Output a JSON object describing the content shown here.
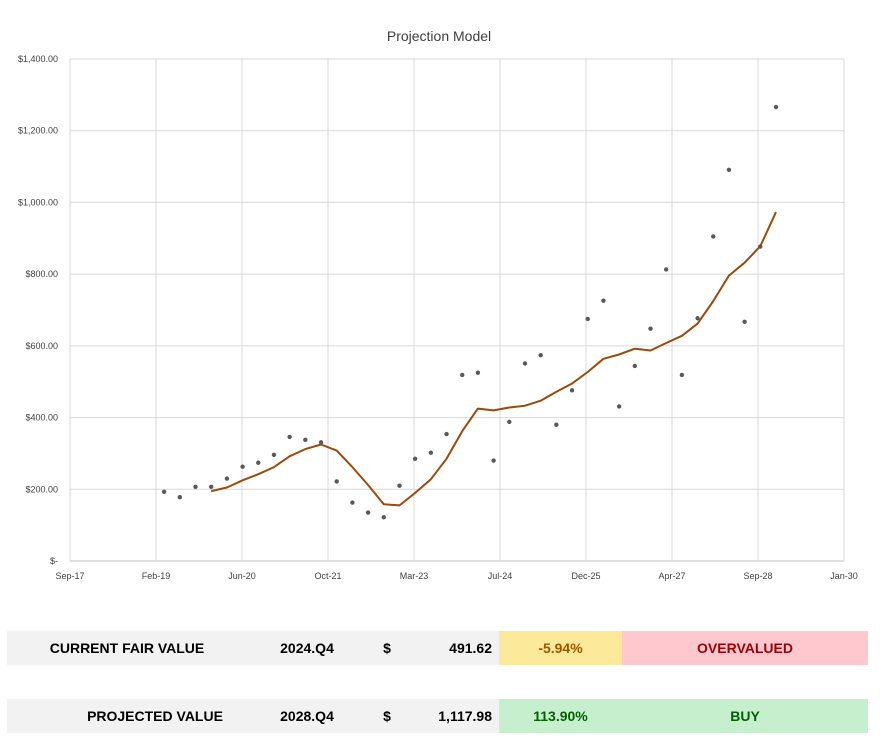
{
  "chart_data": {
    "type": "scatter",
    "title": "Projection Model",
    "x_tick_labels": [
      "Sep-17",
      "Feb-19",
      "Jun-20",
      "Oct-21",
      "Mar-23",
      "Jul-24",
      "Dec-25",
      "Apr-27",
      "Sep-28",
      "Jan-30"
    ],
    "y_tick_labels": [
      "$-",
      "$200.00",
      "$400.00",
      "$600.00",
      "$800.00",
      "$1,000.00",
      "$1,200.00",
      "$1,400.00"
    ],
    "xlim": [
      "2017-09",
      "2030-01"
    ],
    "ylim": [
      0,
      1400
    ],
    "grid": true,
    "series": [
      {
        "kind": "points",
        "color": "#595959",
        "x": [
          "2019-03",
          "2019-06",
          "2019-09",
          "2019-12",
          "2020-03",
          "2020-06",
          "2020-09",
          "2020-12",
          "2021-03",
          "2021-06",
          "2021-09",
          "2021-12",
          "2022-03",
          "2022-06",
          "2022-09",
          "2022-12",
          "2023-03",
          "2023-06",
          "2023-09",
          "2023-12",
          "2024-03",
          "2024-06",
          "2024-09",
          "2024-12",
          "2025-03",
          "2025-06",
          "2025-09",
          "2025-12",
          "2026-03",
          "2026-06",
          "2026-09",
          "2026-12",
          "2027-03",
          "2027-06",
          "2027-09",
          "2027-12",
          "2028-03",
          "2028-06",
          "2028-09",
          "2028-12"
        ],
        "y": [
          193,
          178,
          207,
          207,
          230,
          263,
          274,
          296,
          346,
          338,
          331,
          222,
          163,
          135,
          122,
          210,
          285,
          302,
          354,
          519,
          525,
          280,
          388,
          551,
          574,
          380,
          476,
          675,
          726,
          431,
          544,
          648,
          813,
          519,
          677,
          905,
          1091,
          667,
          877,
          1266
        ]
      },
      {
        "kind": "line",
        "color": "#9c4a0b",
        "x": [
          "2019-12",
          "2020-03",
          "2020-06",
          "2020-09",
          "2020-12",
          "2021-03",
          "2021-06",
          "2021-09",
          "2021-12",
          "2022-03",
          "2022-06",
          "2022-09",
          "2022-12",
          "2023-03",
          "2023-06",
          "2023-09",
          "2023-12",
          "2024-03",
          "2024-06",
          "2024-09",
          "2024-12",
          "2025-03",
          "2025-06",
          "2025-09",
          "2025-12",
          "2026-03",
          "2026-06",
          "2026-09",
          "2026-12",
          "2027-03",
          "2027-06",
          "2027-09",
          "2027-12",
          "2028-03",
          "2028-06",
          "2028-09",
          "2028-12"
        ],
        "y": [
          195,
          205,
          225,
          242,
          262,
          292,
          312,
          325,
          308,
          262,
          212,
          158,
          155,
          190,
          228,
          285,
          362,
          425,
          420,
          428,
          433,
          447,
          472,
          495,
          527,
          564,
          576,
          592,
          587,
          608,
          628,
          662,
          725,
          796,
          832,
          878,
          973
        ]
      }
    ]
  },
  "summary": {
    "current": {
      "label": "CURRENT FAIR VALUE",
      "period": "2024.Q4",
      "currency": "$",
      "value": "491.62",
      "pct": "-5.94%",
      "signal": "OVERVALUED",
      "pct_bg": "#fce99a",
      "pct_color": "#9c5700",
      "signal_bg": "#ffc7ce",
      "signal_color": "#9c0006"
    },
    "projected": {
      "label": "PROJECTED VALUE",
      "period": "2028.Q4",
      "currency": "$",
      "value": "1,117.98",
      "pct": "113.90%",
      "signal": "BUY",
      "pct_bg": "#c6efce",
      "pct_color": "#006100",
      "signal_bg": "#c6efce",
      "signal_color": "#006100"
    }
  }
}
